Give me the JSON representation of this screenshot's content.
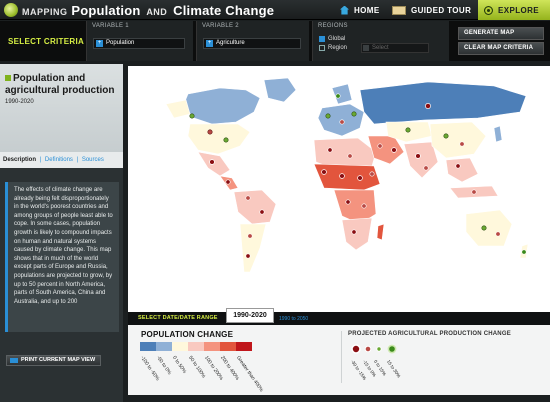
{
  "app": {
    "title_word1": "MAPPING",
    "title_word2": "Population",
    "title_and": "AND",
    "title_word3": "Climate Change"
  },
  "nav": {
    "home": "HOME",
    "tour": "GUIDED TOUR",
    "explore": "EXPLORE"
  },
  "criteria": {
    "label": "SELECT CRITERIA",
    "var1_label": "VARIABLE 1",
    "var1_value": "Population",
    "var2_label": "VARIABLE 2",
    "var2_value": "Agriculture",
    "regions_label": "REGIONS",
    "global": "Global",
    "region": "Region",
    "region_select": "Select",
    "generate": "GENERATE MAP",
    "clear": "CLEAR MAP CRITERIA"
  },
  "panel": {
    "title": "Population and agricultural production",
    "years": "1990-2020",
    "tabs": [
      "Description",
      "Definitions",
      "Sources"
    ],
    "description": "The effects of climate change are already being felt disproportionately in the world's poorest countries and among groups of people least able to cope. In some cases, population growth is likely to compound impacts on human and natural systems caused by climate change. This map shows that in much of the world except parts of Europe and Russia, populations are projected to grow, by up to 50 percent in North America, parts of South America, China and Australia, and up to 200",
    "print": "PRINT CURRENT MAP VIEW"
  },
  "date": {
    "label": "SELECT DATE/DATE RANGE",
    "active": "1990-2020",
    "other": "1990 to 2050"
  },
  "legend_population": {
    "title": "POPULATION CHANGE",
    "labels": [
      "-100 to -50%",
      "-50 to 0%",
      "0 to 50%",
      "50 to 100%",
      "100 to 200%",
      "200 to 400%",
      "Greater than 400%"
    ],
    "colors": [
      "#4d7fb8",
      "#8fb0d6",
      "#fff8dc",
      "#f9c9c0",
      "#f4937f",
      "#e2553d",
      "#c0161b"
    ]
  },
  "legend_agri": {
    "title": "PROJECTED AGRICULTURAL PRODUCTION CHANGE",
    "labels": [
      "-30 to -15%",
      "-15 to 0%",
      "0 to 15%",
      "15 to 30%"
    ],
    "colors": [
      "#8b0e12",
      "#b94a45",
      "#6aa832",
      "#3a8a1a"
    ]
  },
  "icons": {
    "logo": "globe-icon",
    "home": "home-icon",
    "tour": "map-icon",
    "explore": "compass-icon",
    "print": "printer-icon"
  }
}
